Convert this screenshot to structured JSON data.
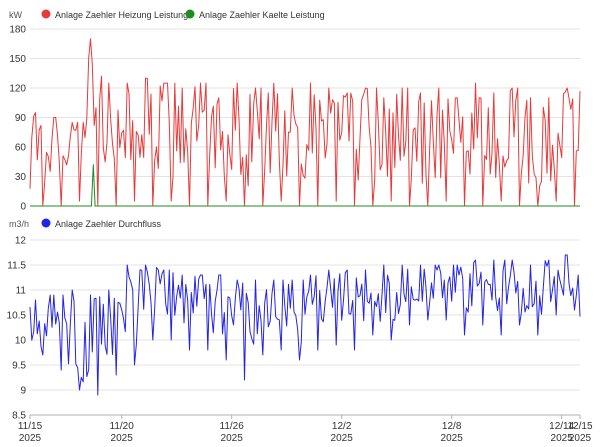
{
  "colors": {
    "heizung": "#e83a3a",
    "kaelte": "#1f8c1f",
    "durchfluss": "#2424e6",
    "grid": "#e3e3e3",
    "axis": "#b0b0b0"
  },
  "x_ticks": [
    {
      "date": "2025-11-15",
      "day": "11/15",
      "year": "2025"
    },
    {
      "date": "2025-11-20",
      "day": "11/20",
      "year": "2025"
    },
    {
      "date": "2025-11-26",
      "day": "11/26",
      "year": "2025"
    },
    {
      "date": "2025-12-02",
      "day": "12/2",
      "year": "2025"
    },
    {
      "date": "2025-12-08",
      "day": "12/8",
      "year": "2025"
    },
    {
      "date": "2025-12-14",
      "day": "12/14",
      "year": "2025"
    },
    {
      "date": "2025-12-15",
      "day": "12/15",
      "year": "2025"
    }
  ],
  "chart_data": [
    {
      "type": "line",
      "unit": "kW",
      "ylim": [
        0,
        180
      ],
      "y_ticks": [
        "0",
        "30",
        "60",
        "90",
        "120",
        "150",
        "180"
      ],
      "grid": true,
      "legend_position": "top-left",
      "x_range": [
        "2025-11-15",
        "2025-12-15"
      ],
      "series": [
        {
          "name": "Anlage Zaehler Heizung Leistung",
          "color_key": "heizung",
          "x": [
            "2025-11-15",
            "2025-11-16",
            "2025-11-17",
            "2025-11-18",
            "2025-11-19",
            "2025-11-20",
            "2025-11-21",
            "2025-11-22",
            "2025-11-23",
            "2025-11-24",
            "2025-11-25",
            "2025-11-26",
            "2025-11-27",
            "2025-11-28",
            "2025-11-29",
            "2025-11-30",
            "2025-12-01",
            "2025-12-02",
            "2025-12-03",
            "2025-12-04",
            "2025-12-05",
            "2025-12-06",
            "2025-12-07",
            "2025-12-08",
            "2025-12-09",
            "2025-12-10",
            "2025-12-11",
            "2025-12-12",
            "2025-12-13",
            "2025-12-14",
            "2025-12-15"
          ],
          "values": [
            55,
            70,
            60,
            120,
            75,
            88,
            85,
            80,
            78,
            76,
            75,
            72,
            74,
            76,
            70,
            72,
            68,
            70,
            72,
            66,
            70,
            68,
            62,
            66,
            70,
            68,
            72,
            66,
            64,
            70,
            80
          ],
          "min": [
            0,
            0,
            5,
            0,
            0,
            5,
            0,
            5,
            0,
            0,
            5,
            0,
            0,
            5,
            0,
            0,
            5,
            0,
            0,
            5,
            0,
            0,
            5,
            0,
            0,
            5,
            0,
            0,
            5,
            0,
            30
          ],
          "max": [
            95,
            90,
            85,
            170,
            125,
            125,
            130,
            125,
            120,
            125,
            110,
            125,
            120,
            125,
            120,
            125,
            120,
            115,
            120,
            110,
            120,
            115,
            120,
            110,
            125,
            115,
            120,
            110,
            110,
            120,
            125
          ]
        },
        {
          "name": "Anlage Zaehler Kaelte Leistung",
          "color_key": "kaelte",
          "x": [
            "2025-11-15",
            "2025-11-18",
            "2025-11-19",
            "2025-11-20",
            "2025-12-15"
          ],
          "values": [
            0,
            0,
            0,
            0,
            0
          ],
          "spike": {
            "x": "2025-11-18",
            "value": 42
          }
        }
      ]
    },
    {
      "type": "line",
      "unit": "m3/h",
      "ylim": [
        8.5,
        12
      ],
      "y_ticks": [
        "8.5",
        "9",
        "9.5",
        "10",
        "10.5",
        "11",
        "11.5",
        "12"
      ],
      "grid": true,
      "legend_position": "top-left",
      "x_range": [
        "2025-11-15",
        "2025-12-15"
      ],
      "series": [
        {
          "name": "Anlage Zaehler Durchfluss",
          "color_key": "durchfluss",
          "x": [
            "2025-11-15",
            "2025-11-16",
            "2025-11-17",
            "2025-11-18",
            "2025-11-19",
            "2025-11-20",
            "2025-11-21",
            "2025-11-22",
            "2025-11-23",
            "2025-11-24",
            "2025-11-25",
            "2025-11-26",
            "2025-11-27",
            "2025-11-28",
            "2025-11-29",
            "2025-11-30",
            "2025-12-01",
            "2025-12-02",
            "2025-12-03",
            "2025-12-04",
            "2025-12-05",
            "2025-12-06",
            "2025-12-07",
            "2025-12-08",
            "2025-12-09",
            "2025-12-10",
            "2025-12-11",
            "2025-12-12",
            "2025-12-13",
            "2025-12-14",
            "2025-12-15"
          ],
          "values": [
            10.2,
            10.4,
            10.0,
            10.1,
            10.3,
            10.6,
            10.9,
            11.0,
            10.9,
            10.8,
            10.7,
            10.6,
            10.5,
            10.8,
            10.6,
            10.7,
            10.8,
            10.7,
            10.9,
            10.9,
            11.0,
            11.1,
            11.1,
            11.1,
            11.0,
            11.1,
            11.0,
            11.0,
            11.2,
            11.3,
            10.3
          ],
          "min": [
            9.7,
            9.4,
            9.0,
            8.9,
            9.3,
            9.5,
            10.0,
            10.0,
            9.8,
            9.8,
            9.6,
            9.2,
            9.7,
            9.8,
            9.6,
            9.8,
            9.9,
            9.8,
            10.1,
            10.0,
            10.3,
            10.4,
            10.4,
            10.1,
            10.3,
            10.1,
            10.3,
            10.1,
            10.5,
            10.6,
            10.1
          ],
          "max": [
            10.8,
            10.9,
            11.0,
            10.9,
            11.0,
            11.5,
            11.5,
            11.4,
            11.3,
            11.3,
            11.3,
            11.2,
            11.2,
            11.2,
            11.2,
            11.3,
            11.4,
            11.4,
            11.4,
            11.5,
            11.5,
            11.5,
            11.5,
            11.5,
            11.6,
            11.6,
            11.6,
            11.5,
            11.6,
            11.7,
            11.4
          ]
        }
      ]
    }
  ]
}
